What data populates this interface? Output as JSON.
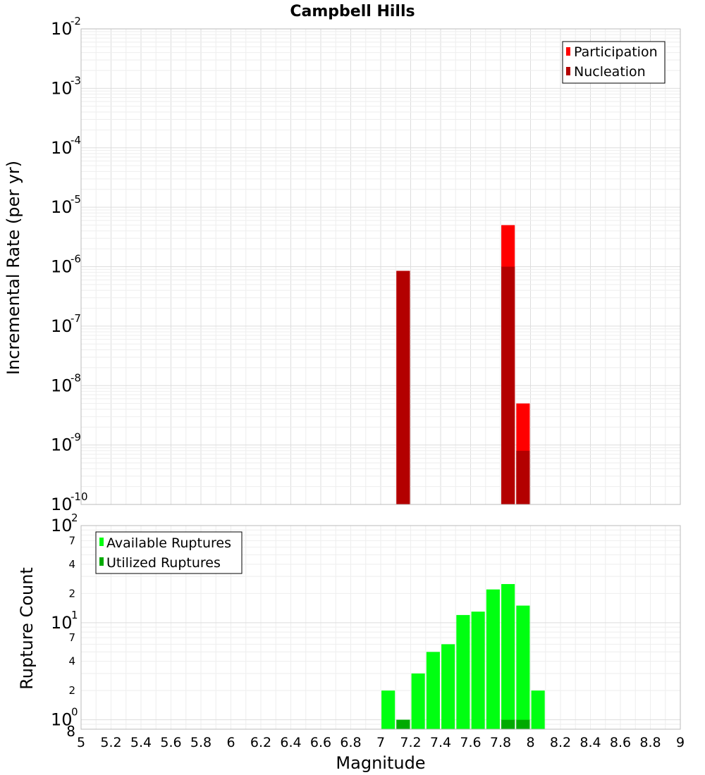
{
  "chart_data": [
    {
      "type": "bar",
      "title": "Campbell Hills",
      "xlabel": "Magnitude",
      "ylabel": "Incremental Rate (per yr)",
      "yscale": "log",
      "xlim": [
        5,
        9
      ],
      "ylim": [
        1e-10,
        0.01
      ],
      "grid": true,
      "legend_position": "top-right",
      "x_ticks": [
        "5",
        "5.2",
        "5.4",
        "5.6",
        "5.8",
        "6",
        "6.2",
        "6.4",
        "6.6",
        "6.8",
        "7",
        "7.2",
        "7.4",
        "7.6",
        "7.8",
        "8",
        "8.2",
        "8.4",
        "8.6",
        "8.8",
        "9"
      ],
      "y_ticks": [
        {
          "value": 1e-10,
          "base": "10",
          "exp": "-10"
        },
        {
          "value": 1e-09,
          "base": "10",
          "exp": "-9"
        },
        {
          "value": 1e-08,
          "base": "10",
          "exp": "-8"
        },
        {
          "value": 1e-07,
          "base": "10",
          "exp": "-7"
        },
        {
          "value": 1e-06,
          "base": "10",
          "exp": "-6"
        },
        {
          "value": 1e-05,
          "base": "10",
          "exp": "-5"
        },
        {
          "value": 0.0001,
          "base": "10",
          "exp": "-4"
        },
        {
          "value": 0.001,
          "base": "10",
          "exp": "-3"
        },
        {
          "value": 0.01,
          "base": "10",
          "exp": "-2"
        }
      ],
      "series": [
        {
          "name": "Participation",
          "color": "#ff0000",
          "x": [
            7.15,
            7.85,
            7.95
          ],
          "values": [
            8.5e-07,
            5e-06,
            5e-09
          ]
        },
        {
          "name": "Nucleation",
          "color": "#b30000",
          "x": [
            7.15,
            7.85,
            7.95
          ],
          "values": [
            8.5e-07,
            1e-06,
            8e-10
          ]
        }
      ]
    },
    {
      "type": "bar",
      "xlabel": "Magnitude",
      "ylabel": "Rupture Count",
      "yscale": "log",
      "xlim": [
        5,
        9
      ],
      "ylim": [
        0.8,
        100
      ],
      "grid": true,
      "legend_position": "top-left",
      "y_ticks": [
        {
          "value": 1,
          "base": "10",
          "exp": "0"
        },
        {
          "value": 10,
          "base": "10",
          "exp": "1"
        },
        {
          "value": 100,
          "base": "10",
          "exp": "2"
        }
      ],
      "y_minor_labels": [
        {
          "value": 0.8,
          "label": "8"
        },
        {
          "value": 2,
          "label": "2"
        },
        {
          "value": 4,
          "label": "4"
        },
        {
          "value": 7,
          "label": "7"
        },
        {
          "value": 20,
          "label": "2"
        },
        {
          "value": 40,
          "label": "4"
        },
        {
          "value": 70,
          "label": "7"
        }
      ],
      "series": [
        {
          "name": "Available Ruptures",
          "color": "#00ff11",
          "x": [
            7.05,
            7.15,
            7.25,
            7.35,
            7.45,
            7.55,
            7.65,
            7.75,
            7.85,
            7.95,
            8.05
          ],
          "values": [
            2,
            1,
            3,
            5,
            6,
            12,
            13,
            22,
            25,
            15,
            2
          ]
        },
        {
          "name": "Utilized Ruptures",
          "color": "#00aa00",
          "x": [
            7.15,
            7.85,
            7.95
          ],
          "values": [
            1,
            1,
            1
          ]
        }
      ]
    }
  ]
}
